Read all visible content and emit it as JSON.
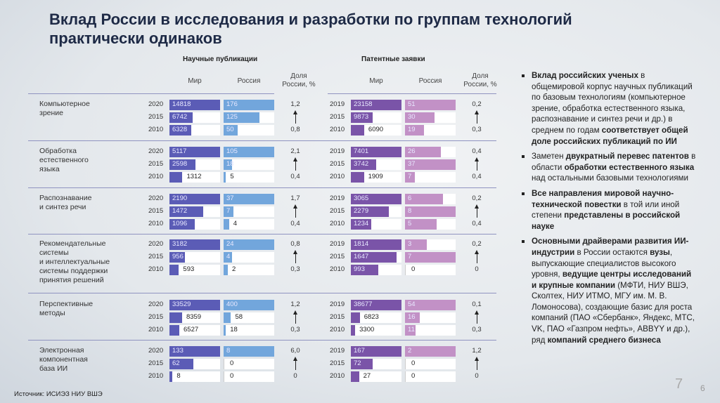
{
  "title": "Вклад России в исследования и разработки по группам технологий практически одинаков",
  "chart_data": {
    "type": "bar",
    "sections": [
      {
        "key": "publications",
        "title": "Научные публикации",
        "years": [
          "2020",
          "2015",
          "2010"
        ]
      },
      {
        "key": "patents",
        "title": "Патентные заявки",
        "years": [
          "2019",
          "2015",
          "2010"
        ]
      }
    ],
    "columns": {
      "world": "Мир",
      "russia": "Россия",
      "share": "Доля России, %"
    },
    "colors": {
      "pub_world": "#5b5cb6",
      "pub_russia": "#72a6dc",
      "pat_world": "#7a54a8",
      "pat_russia": "#c291c6"
    },
    "groups": [
      {
        "name": "Компьютерное зрение",
        "publications": {
          "world": [
            14818,
            6742,
            6328
          ],
          "russia": [
            176,
            125,
            50
          ],
          "share_latest": "1,2",
          "share_2010": "0,8"
        },
        "patents": {
          "world": [
            23158,
            9873,
            6090
          ],
          "russia": [
            51,
            30,
            19
          ],
          "share_latest": "0,2",
          "share_2010": "0,3"
        }
      },
      {
        "name": "Обработка естественного языка",
        "publications": {
          "world": [
            5117,
            2598,
            1312
          ],
          "russia": [
            105,
            18,
            5
          ],
          "share_latest": "2,1",
          "share_2010": "0,4"
        },
        "patents": {
          "world": [
            7401,
            3742,
            1909
          ],
          "russia": [
            26,
            37,
            7
          ],
          "share_latest": "0,4",
          "share_2010": "0,4"
        }
      },
      {
        "name": "Распознавание и синтез речи",
        "publications": {
          "world": [
            2190,
            1472,
            1096
          ],
          "russia": [
            37,
            7,
            4
          ],
          "share_latest": "1,7",
          "share_2010": "0,4"
        },
        "patents": {
          "world": [
            3065,
            2279,
            1234
          ],
          "russia": [
            6,
            8,
            5
          ],
          "share_latest": "0,2",
          "share_2010": "0,4"
        }
      },
      {
        "name": "Рекомендательные системы и интеллектуальные системы поддержки принятия решений",
        "publications": {
          "world": [
            3182,
            956,
            593
          ],
          "russia": [
            24,
            4,
            2
          ],
          "share_latest": "0,8",
          "share_2010": "0,3"
        },
        "patents": {
          "world": [
            1814,
            1647,
            993
          ],
          "russia": [
            3,
            7,
            0
          ],
          "share_latest": "0,2",
          "share_2010": "0"
        }
      },
      {
        "name": "Перспективные методы",
        "publications": {
          "world": [
            33529,
            8359,
            6527
          ],
          "russia": [
            400,
            58,
            18
          ],
          "share_latest": "1,2",
          "share_2010": "0,3"
        },
        "patents": {
          "world": [
            38677,
            6823,
            3300
          ],
          "russia": [
            54,
            16,
            11
          ],
          "share_latest": "0,1",
          "share_2010": "0,3"
        }
      },
      {
        "name": "Электронная компонентная база ИИ",
        "publications": {
          "world": [
            133,
            62,
            8
          ],
          "russia": [
            8,
            0,
            0
          ],
          "share_latest": "6,0",
          "share_2010": "0"
        },
        "patents": {
          "world": [
            167,
            72,
            27
          ],
          "russia": [
            2,
            0,
            0
          ],
          "share_latest": "1,2",
          "share_2010": "0"
        }
      }
    ]
  },
  "group_labels": [
    "Компьютерное<br>зрение",
    "Обработка<br>естественного<br>языка",
    "Распознавание<br>и синтез речи",
    "Рекомендательные<br>системы<br>и интеллектуальные<br>системы поддержки<br>принятия решений",
    "Перспективные<br>методы",
    "Электронная<br>компонентная<br>база ИИ"
  ],
  "bullets": [
    "<b>Вклад российских ученых</b> в общемировой корпус научных публикаций по базовым технологиям (компьютерное зрение, обработка естественного языка, распознавание и синтез речи и др.) в среднем по годам <b>соответствует общей доле российских публикаций по ИИ</b>",
    "Заметен <b>двукратный перевес патентов</b> в области <b>обработки естественного языка</b> над остальными базовыми технологиями",
    "<b>Все направления мировой научно- технической повестки</b> в той или иной степени <b>представлены в российской науке</b>",
    "<b>Основными драйверами развития ИИ- индустрии</b> в России остаются <b>вузы</b>, выпускающие специалистов высокого уровня, <b>ведущие центры исследований и крупные компании</b> (МФТИ, НИУ ВШЭ, Сколтех, НИУ ИТМО, МГУ им. М. В. Ломоносова), создающие базис для роста компаний (ПАО «Сбербанк», Яндекс, МТС, VK, ПАО «Газпром нефть», ABBYY и др.), ряд <b>компаний среднего бизнеса</b>"
  ],
  "source": "Источник: ИСИЭЗ НИУ ВШЭ",
  "page_number_large": "7",
  "page_number_small": "6"
}
